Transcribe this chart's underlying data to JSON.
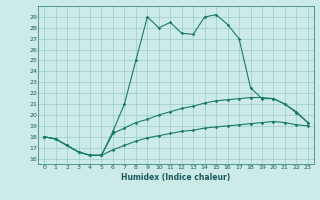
{
  "xlabel": "Humidex (Indice chaleur)",
  "bg_color": "#cceae7",
  "grid_color": "#99cccc",
  "line_color": "#1a7a6a",
  "xlim": [
    -0.5,
    23.5
  ],
  "ylim": [
    15.5,
    30.0
  ],
  "xticks": [
    0,
    1,
    2,
    3,
    4,
    5,
    6,
    7,
    8,
    9,
    10,
    11,
    12,
    13,
    14,
    15,
    16,
    17,
    18,
    19,
    20,
    21,
    22,
    23
  ],
  "yticks": [
    16,
    17,
    18,
    19,
    20,
    21,
    22,
    23,
    24,
    25,
    26,
    27,
    28,
    29
  ],
  "line1": [
    18.0,
    17.8,
    17.2,
    16.6,
    16.3,
    16.3,
    18.5,
    21.0,
    25.0,
    29.0,
    28.0,
    28.5,
    27.5,
    27.4,
    29.0,
    29.2,
    28.3,
    27.0,
    22.5,
    21.5,
    21.5,
    21.0,
    20.2,
    19.3
  ],
  "line2": [
    18.0,
    17.8,
    17.2,
    16.6,
    16.3,
    16.3,
    18.3,
    18.8,
    19.3,
    19.6,
    20.0,
    20.3,
    20.6,
    20.8,
    21.1,
    21.3,
    21.4,
    21.5,
    21.6,
    21.6,
    21.5,
    21.0,
    20.3,
    19.3
  ],
  "line3": [
    18.0,
    17.8,
    17.2,
    16.6,
    16.3,
    16.3,
    16.8,
    17.2,
    17.6,
    17.9,
    18.1,
    18.3,
    18.5,
    18.6,
    18.8,
    18.9,
    19.0,
    19.1,
    19.2,
    19.3,
    19.4,
    19.3,
    19.1,
    19.0
  ]
}
